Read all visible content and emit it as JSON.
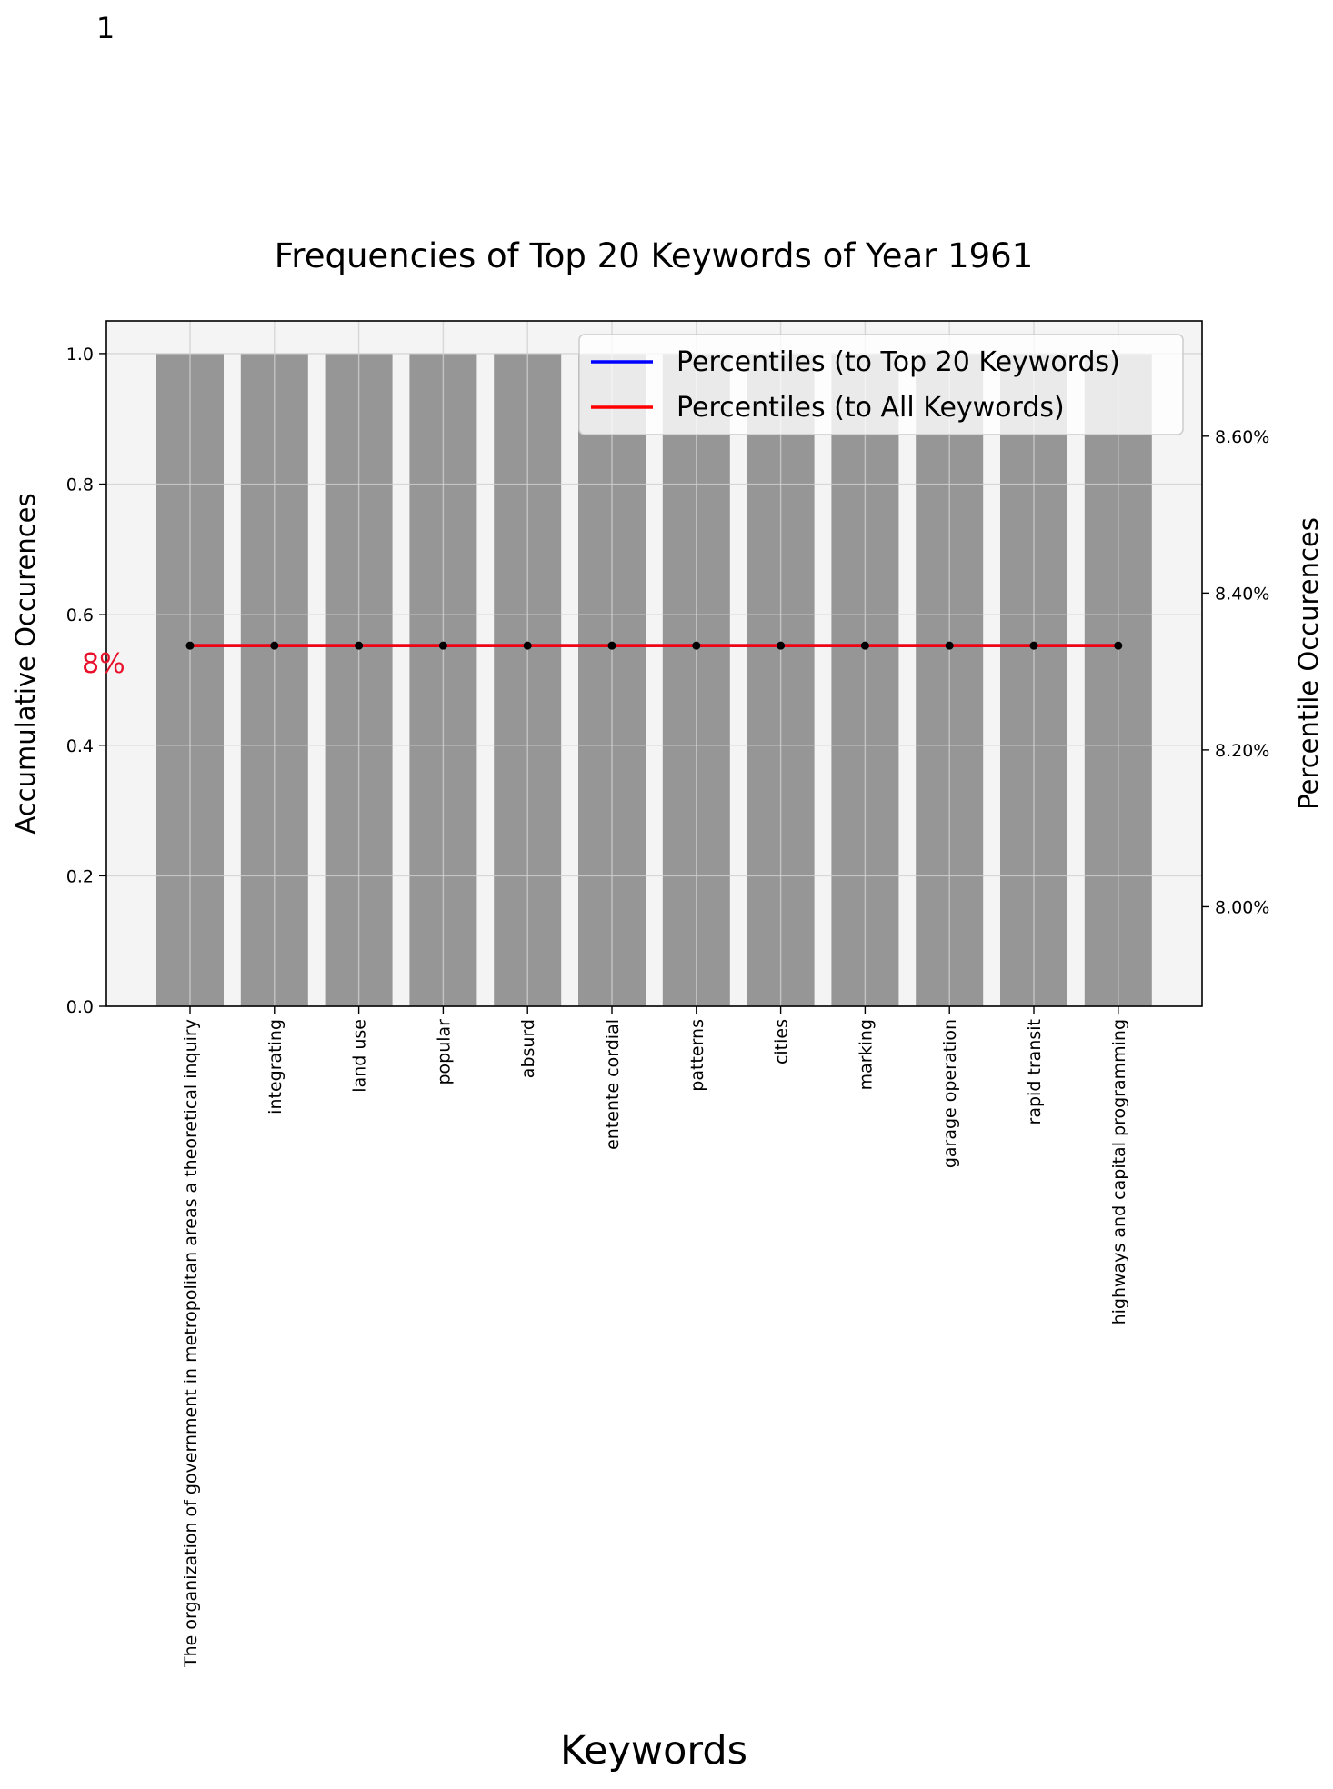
{
  "page_number": "1",
  "chart_data": {
    "type": "bar",
    "title": "Frequencies of Top 20 Keywords of Year 1961",
    "xlabel": "Keywords",
    "ylabel": "Accumulative Occurences",
    "ylabel_right": "Percentile Occurences",
    "categories": [
      "The organization of government in metropolitan areas a theoretical inquiry",
      "integrating",
      "land use",
      "popular",
      "absurd",
      "entente cordial",
      "patterns",
      "cities",
      "marking",
      "garage operation",
      "rapid transit",
      "highways and capital programming"
    ],
    "values": [
      1,
      1,
      1,
      1,
      1,
      1,
      1,
      1,
      1,
      1,
      1,
      1
    ],
    "ylim": [
      0,
      1.05
    ],
    "yticks": [
      "0.0",
      "0.2",
      "0.4",
      "0.6",
      "0.8",
      "1.0"
    ],
    "ylim_right": [
      7.873,
      8.747
    ],
    "yticks_right": [
      "8.00%",
      "8.20%",
      "8.40%",
      "8.60%"
    ],
    "series_right": [
      {
        "name": "Percentiles (to Top 20 Keywords)",
        "color": "#0000ff",
        "values": [
          8.333,
          8.333,
          8.333,
          8.333,
          8.333,
          8.333,
          8.333,
          8.333,
          8.333,
          8.333,
          8.333,
          8.333
        ]
      },
      {
        "name": "Percentiles (to All Keywords)",
        "color": "#ff0000",
        "values": [
          8.333,
          8.333,
          8.333,
          8.333,
          8.333,
          8.333,
          8.333,
          8.333,
          8.333,
          8.333,
          8.333,
          8.333
        ]
      }
    ],
    "annotation": "8%",
    "annotation_color": "#e8102a",
    "bar_color": "#969696",
    "plot_background": "#f4f4f4",
    "grid": true,
    "legend_position": "top-right"
  }
}
